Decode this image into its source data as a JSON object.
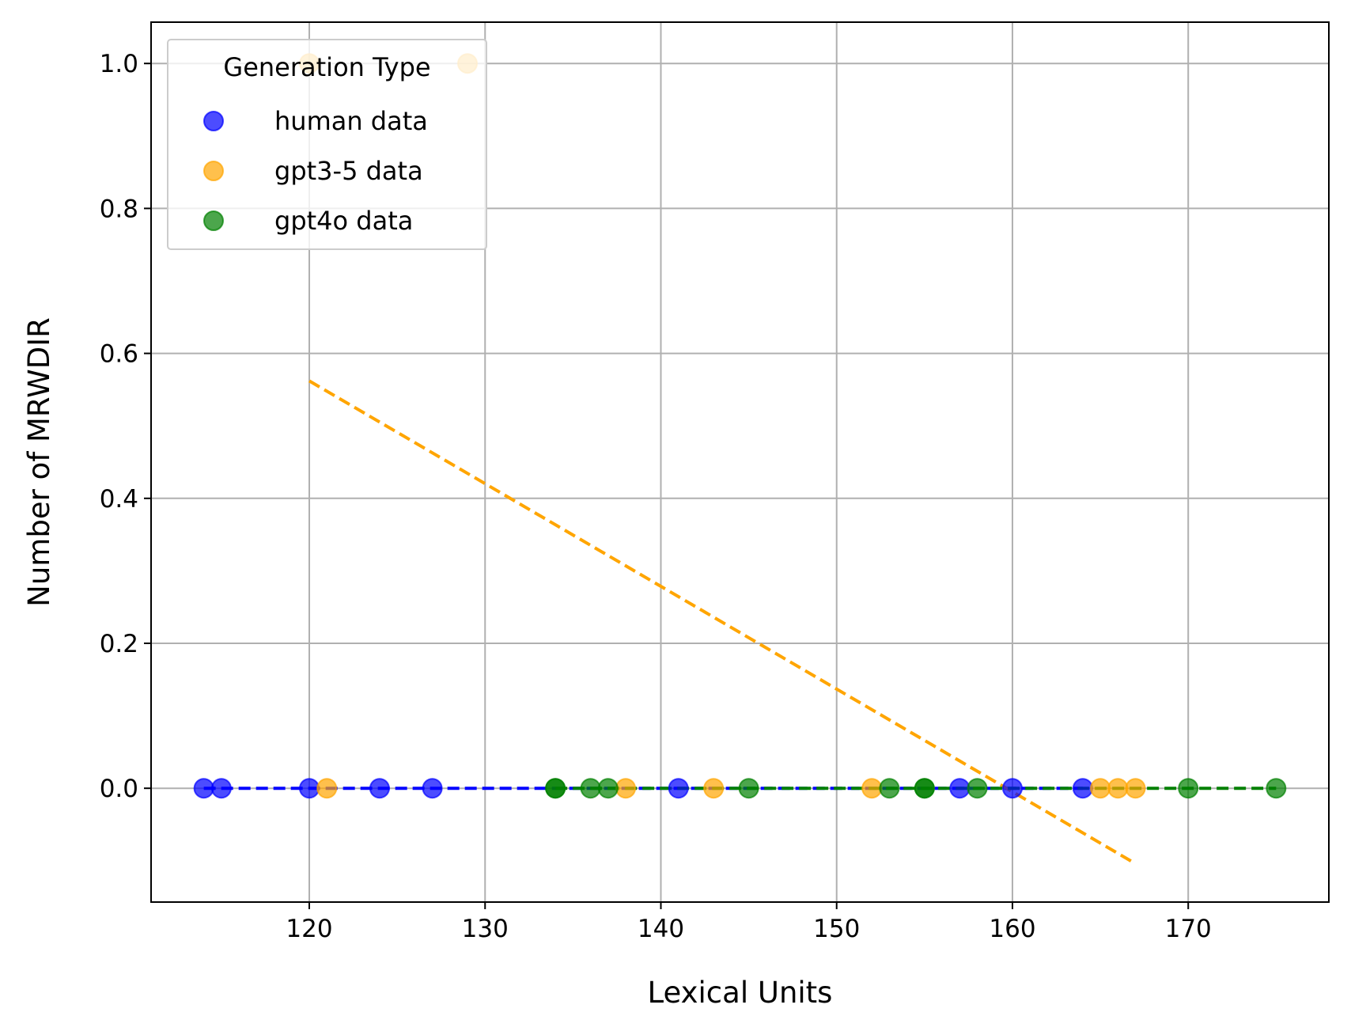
{
  "chart_data": {
    "type": "scatter",
    "title": "",
    "xlabel": "Lexical Units",
    "ylabel": "Number of MRWDIR",
    "xlim": [
      111,
      178
    ],
    "ylim": [
      -0.157,
      1.057
    ],
    "xticks": [
      120,
      130,
      140,
      150,
      160,
      170
    ],
    "yticks": [
      0.0,
      0.2,
      0.4,
      0.6,
      0.8,
      1.0
    ],
    "xtick_labels": [
      "120",
      "130",
      "140",
      "150",
      "160",
      "170"
    ],
    "ytick_labels": [
      "0.0",
      "0.2",
      "0.4",
      "0.6",
      "0.8",
      "1.0"
    ],
    "grid": true,
    "legend": {
      "title": "Generation Type",
      "placement": "top-left"
    },
    "series": [
      {
        "name": "human data",
        "color": "#0000ff",
        "points": [
          {
            "x": 114,
            "y": 0
          },
          {
            "x": 115,
            "y": 0
          },
          {
            "x": 120,
            "y": 0
          },
          {
            "x": 124,
            "y": 0
          },
          {
            "x": 127,
            "y": 0
          },
          {
            "x": 141,
            "y": 0
          },
          {
            "x": 157,
            "y": 0
          },
          {
            "x": 160,
            "y": 0
          },
          {
            "x": 164,
            "y": 0
          }
        ],
        "trendline": {
          "x": [
            114,
            164
          ],
          "y": [
            0,
            0
          ]
        }
      },
      {
        "name": "gpt3-5 data",
        "color": "#ffa500",
        "points": [
          {
            "x": 120,
            "y": 1
          },
          {
            "x": 129,
            "y": 1
          },
          {
            "x": 121,
            "y": 0
          },
          {
            "x": 138,
            "y": 0
          },
          {
            "x": 143,
            "y": 0
          },
          {
            "x": 152,
            "y": 0
          },
          {
            "x": 165,
            "y": 0
          },
          {
            "x": 166,
            "y": 0
          },
          {
            "x": 167,
            "y": 0
          }
        ],
        "trendline": {
          "x": [
            120,
            167
          ],
          "y": [
            0.562,
            -0.104
          ]
        }
      },
      {
        "name": "gpt4o data",
        "color": "#008000",
        "points": [
          {
            "x": 134,
            "y": 0
          },
          {
            "x": 134,
            "y": 0
          },
          {
            "x": 136,
            "y": 0
          },
          {
            "x": 137,
            "y": 0
          },
          {
            "x": 145,
            "y": 0
          },
          {
            "x": 153,
            "y": 0
          },
          {
            "x": 155,
            "y": 0
          },
          {
            "x": 155,
            "y": 0
          },
          {
            "x": 158,
            "y": 0
          },
          {
            "x": 170,
            "y": 0
          },
          {
            "x": 175,
            "y": 0
          }
        ],
        "trendline": {
          "x": [
            134,
            175
          ],
          "y": [
            0,
            0
          ]
        }
      }
    ]
  }
}
